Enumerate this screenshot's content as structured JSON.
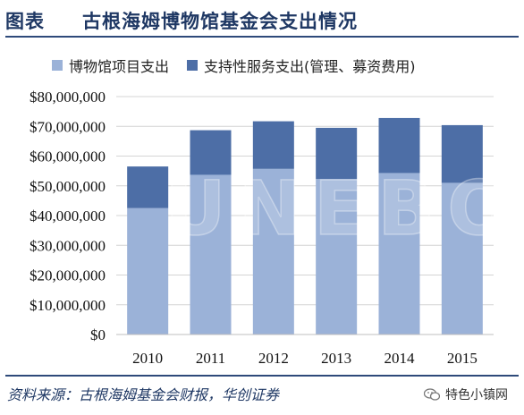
{
  "header": {
    "tag": "图表",
    "title": "古根海姆博物馆基金会支出情况"
  },
  "footer": {
    "source": "资料来源：古根海姆基金会财报，华创证券",
    "wechat_label": "特色小镇网"
  },
  "watermark": "UNEBO",
  "colors": {
    "series1": "#9bb2d8",
    "series2": "#4d6ea6",
    "header_text": "#1f3864"
  },
  "chart_data": {
    "type": "bar",
    "stacked": true,
    "categories": [
      "2010",
      "2011",
      "2012",
      "2013",
      "2014",
      "2015"
    ],
    "series": [
      {
        "name": "博物馆项目支出",
        "values": [
          42500000,
          53700000,
          55700000,
          52300000,
          54300000,
          51000000
        ]
      },
      {
        "name": "支持性服务支出(管理、募资费用)",
        "values": [
          14000000,
          15000000,
          16000000,
          17200000,
          18500000,
          19400000
        ]
      }
    ],
    "ylim": [
      0,
      80000000
    ],
    "yticks": [
      0,
      10000000,
      20000000,
      30000000,
      40000000,
      50000000,
      60000000,
      70000000,
      80000000
    ],
    "ytick_labels": [
      "$0",
      "$10,000,000",
      "$20,000,000",
      "$30,000,000",
      "$40,000,000",
      "$50,000,000",
      "$60,000,000",
      "$70,000,000",
      "$80,000,000"
    ],
    "grid": true,
    "legend_position": "top",
    "title": "",
    "xlabel": "",
    "ylabel": ""
  }
}
